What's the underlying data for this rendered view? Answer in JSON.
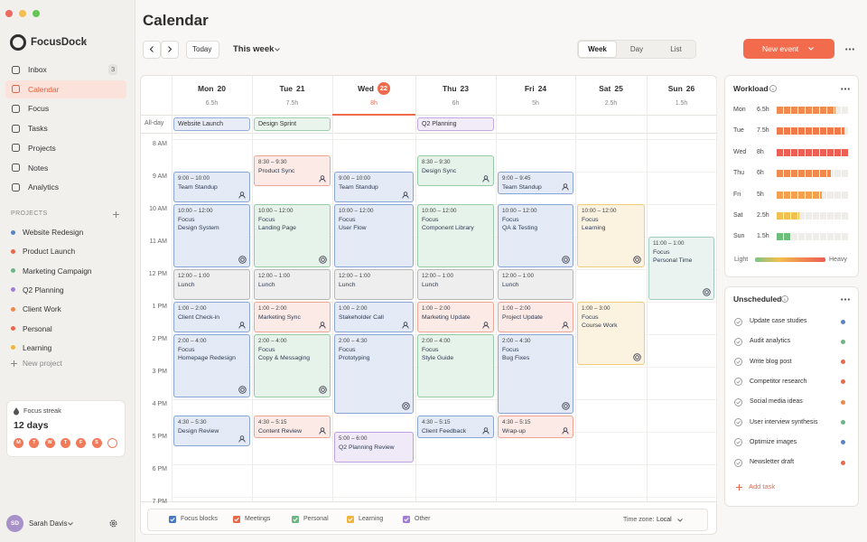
{
  "app": {
    "name": "FocusDock"
  },
  "nav": [
    {
      "label": "Inbox",
      "badge": "3"
    },
    {
      "label": "Calendar",
      "active": true
    },
    {
      "label": "Focus"
    },
    {
      "label": "Tasks"
    },
    {
      "label": "Projects"
    },
    {
      "label": "Notes"
    },
    {
      "label": "Analytics"
    }
  ],
  "projects": {
    "heading": "PROJECTS",
    "items": [
      {
        "label": "Website Redesign",
        "color": "#5b82c6"
      },
      {
        "label": "Product Launch",
        "color": "#e8694a"
      },
      {
        "label": "Marketing Campaign",
        "color": "#6bb684"
      },
      {
        "label": "Q2 Planning",
        "color": "#a17ed3"
      },
      {
        "label": "Client Work",
        "color": "#ef8a4a"
      },
      {
        "label": "Personal",
        "color": "#e8694a"
      },
      {
        "label": "Learning",
        "color": "#f0b43c"
      }
    ],
    "add": "New project"
  },
  "streak": {
    "label": "Focus streak",
    "value": "12 days",
    "days": [
      "M",
      "T",
      "W",
      "T",
      "F",
      "S"
    ]
  },
  "user": {
    "initials": "SD",
    "name": "Sarah Davis"
  },
  "header": {
    "title": "Calendar",
    "today": "Today",
    "range": "This week",
    "views": [
      "Week",
      "Day",
      "List"
    ],
    "active_view": "Week",
    "new_event": "New event"
  },
  "calendar": {
    "allday_label": "All-day",
    "hours": [
      "8 AM",
      "9 AM",
      "10 AM",
      "11 AM",
      "12 PM",
      "1 PM",
      "2 PM",
      "3 PM",
      "4 PM",
      "5 PM",
      "6 PM",
      "7 PM"
    ],
    "days": [
      {
        "name": "Mon",
        "date": "20",
        "hours": "6.5h",
        "allday": [
          {
            "title": "Website Launch",
            "color": "#5b82c6"
          }
        ],
        "events": [
          {
            "time": "9:00 – 10:00",
            "title": "Team Standup",
            "color": "#5b82c6",
            "icon": "person"
          },
          {
            "time": "10:00 – 12:00",
            "title": "Focus",
            "subtitle": "Design System",
            "color": "#5b82c6",
            "icon": "focus"
          },
          {
            "time": "12:00 – 1:00",
            "title": "Lunch",
            "color": "#9a9a9a"
          },
          {
            "time": "1:00 – 2:00",
            "title": "Client Check-in",
            "color": "#5b82c6",
            "icon": "person"
          },
          {
            "time": "2:00 – 4:00",
            "title": "Focus",
            "subtitle": "Homepage Redesign",
            "color": "#5b82c6",
            "icon": "focus"
          },
          {
            "time": "4:30 – 5:30",
            "title": "Design Review",
            "color": "#5b82c6",
            "icon": "person"
          }
        ]
      },
      {
        "name": "Tue",
        "date": "21",
        "hours": "7.5h",
        "allday": [
          {
            "title": "Design Sprint",
            "color": "#6bb684"
          }
        ],
        "events": [
          {
            "time": "8:30 – 9:30",
            "title": "Product Sync",
            "color": "#e8826a",
            "icon": "person"
          },
          {
            "time": "10:00 – 12:00",
            "title": "Focus",
            "subtitle": "Landing Page",
            "color": "#6bb684",
            "icon": "focus"
          },
          {
            "time": "12:00 – 1:00",
            "title": "Lunch",
            "color": "#9a9a9a"
          },
          {
            "time": "1:00 – 2:00",
            "title": "Marketing Sync",
            "color": "#e8826a",
            "icon": "person"
          },
          {
            "time": "2:00 – 4:00",
            "title": "Focus",
            "subtitle": "Copy & Messaging",
            "color": "#6bb684",
            "icon": "focus"
          },
          {
            "time": "4:30 – 5:15",
            "title": "Content Review",
            "color": "#e8826a",
            "icon": "person"
          }
        ]
      },
      {
        "name": "Wed",
        "date": "22",
        "hours": "8h",
        "today": true,
        "allday": [],
        "events": [
          {
            "time": "9:00 – 10:00",
            "title": "Team Standup",
            "color": "#5b82c6",
            "icon": "person"
          },
          {
            "time": "10:00 – 12:00",
            "title": "Focus",
            "subtitle": "User Flow",
            "color": "#5b82c6"
          },
          {
            "time": "12:00 – 1:00",
            "title": "Lunch",
            "color": "#9a9a9a"
          },
          {
            "time": "1:00 – 2:00",
            "title": "Stakeholder Call",
            "color": "#5b82c6",
            "icon": "person"
          },
          {
            "time": "2:00 – 4:30",
            "title": "Focus",
            "subtitle": "Prototyping",
            "color": "#5b82c6",
            "icon": "focus"
          },
          {
            "time": "5:00 – 6:00",
            "title": "Q2 Planning Review",
            "color": "#a17ed3"
          }
        ]
      },
      {
        "name": "Thu",
        "date": "23",
        "hours": "6h",
        "allday": [
          {
            "title": "Q2 Planning",
            "color": "#a17ed3"
          }
        ],
        "events": [
          {
            "time": "8:30 – 9:30",
            "title": "Design Sync",
            "color": "#6bb684",
            "icon": "person"
          },
          {
            "time": "10:00 – 12:00",
            "title": "Focus",
            "subtitle": "Component Library",
            "color": "#6bb684"
          },
          {
            "time": "12:00 – 1:00",
            "title": "Lunch",
            "color": "#9a9a9a"
          },
          {
            "time": "1:00 – 2:00",
            "title": "Marketing Update",
            "color": "#e8826a",
            "icon": "person"
          },
          {
            "time": "2:00 – 4:00",
            "title": "Focus",
            "subtitle": "Style Guide",
            "color": "#6bb684"
          },
          {
            "time": "4:30 – 5:15",
            "title": "Client Feedback",
            "color": "#5b82c6",
            "icon": "person"
          }
        ]
      },
      {
        "name": "Fri",
        "date": "24",
        "hours": "5h",
        "allday": [],
        "events": [
          {
            "time": "9:00 – 9:45",
            "title": "Team Standup",
            "color": "#5b82c6",
            "icon": "person"
          },
          {
            "time": "10:00 – 12:00",
            "title": "Focus",
            "subtitle": "QA & Testing",
            "color": "#5b82c6",
            "icon": "focus"
          },
          {
            "time": "12:00 – 1:00",
            "title": "Lunch",
            "color": "#9a9a9a"
          },
          {
            "time": "1:00 – 2:00",
            "title": "Project Update",
            "color": "#e8826a",
            "icon": "person"
          },
          {
            "time": "2:00 – 4:30",
            "title": "Focus",
            "subtitle": "Bug Fixes",
            "color": "#5b82c6",
            "icon": "focus"
          },
          {
            "time": "4:30 – 5:15",
            "title": "Wrap-up",
            "color": "#e8826a",
            "icon": "person"
          }
        ]
      },
      {
        "name": "Sat",
        "date": "25",
        "hours": "2.5h",
        "allday": [],
        "events": [
          {
            "time": "10:00 – 12:00",
            "title": "Focus",
            "subtitle": "Learning",
            "color": "#e8b84a",
            "icon": "focus"
          },
          {
            "time": "1:00 – 3:00",
            "title": "Focus",
            "subtitle": "Course Work",
            "color": "#e8b84a",
            "icon": "focus"
          }
        ]
      },
      {
        "name": "Sun",
        "date": "26",
        "hours": "1.5h",
        "allday": [],
        "events": [
          {
            "time": "11:00 – 1:00",
            "title": "Focus",
            "subtitle": "Personal Time",
            "color": "#7fb8a8",
            "icon": "focus"
          }
        ]
      }
    ],
    "legend": [
      {
        "name": "Focus blocks",
        "color": "#4a78c0"
      },
      {
        "name": "Meetings",
        "color": "#e8694a"
      },
      {
        "name": "Personal",
        "color": "#6bb684"
      },
      {
        "name": "Learning",
        "color": "#f0b43c"
      },
      {
        "name": "Other",
        "color": "#a17ed3"
      }
    ],
    "timezone_label": "Time zone:",
    "timezone": "Local"
  },
  "workload": {
    "title": "Workload",
    "days": [
      "Mon",
      "Tue",
      "Wed",
      "Thu",
      "Fri",
      "Sat",
      "Sun"
    ],
    "values": [
      6.5,
      7.5,
      8,
      6,
      5,
      2.5,
      1.5
    ],
    "value_labels": [
      "6.5h",
      "7.5h",
      "8h",
      "6h",
      "5h",
      "2.5h",
      "1.5h"
    ],
    "colors": [
      "#f08a4f",
      "#f07a4a",
      "#ec5f55",
      "#f08a4f",
      "#f3a04f",
      "#f2c04f",
      "#6bbf7a"
    ],
    "xlim": [
      0,
      8
    ],
    "legend": {
      "low": "Light",
      "high": "Heavy"
    }
  },
  "unscheduled": {
    "title": "Unscheduled",
    "items": [
      {
        "label": "Update case studies",
        "color": "#5b82c6"
      },
      {
        "label": "Audit analytics",
        "color": "#6bb684"
      },
      {
        "label": "Write blog post",
        "color": "#e8694a"
      },
      {
        "label": "Competitor research",
        "color": "#e8694a"
      },
      {
        "label": "Social media ideas",
        "color": "#ef8a4a"
      },
      {
        "label": "User interview synthesis",
        "color": "#6bb684"
      },
      {
        "label": "Optimize images",
        "color": "#5b82c6"
      },
      {
        "label": "Newsletter draft",
        "color": "#e8694a"
      }
    ],
    "add": "Add task"
  }
}
